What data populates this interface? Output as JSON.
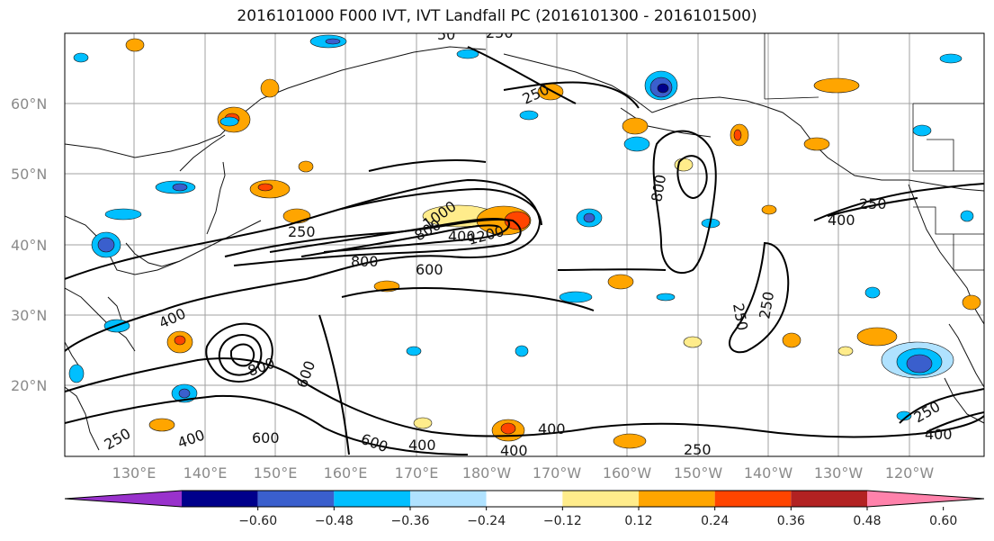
{
  "title": "2016101000 F000 IVT, IVT Landfall PC (2016101300 - 2016101500)",
  "lat_labels": [
    "60°N",
    "50°N",
    "40°N",
    "30°N",
    "20°N"
  ],
  "lon_labels": [
    "130°E",
    "140°E",
    "150°E",
    "160°E",
    "170°E",
    "180°W",
    "170°W",
    "160°W",
    "150°W",
    "140°W",
    "130°W",
    "120°W"
  ],
  "contour_labels": {
    "c250_a": "250",
    "c250_b": "250",
    "c250_c": "250",
    "c250_d": "250",
    "c250_e": "250",
    "c250_f": "250",
    "c250_g": "250",
    "c250_h": "250",
    "c250_i": "250",
    "c400_a": "400",
    "c400_b": "400",
    "c400_c": "400",
    "c400_d": "400",
    "c400_e": "400",
    "c400_f": "400",
    "c400_g": "400",
    "c400_h": "400",
    "c600_a": "600",
    "c600_b": "600",
    "c600_c": "600",
    "c600_d": "600",
    "c800_a": "800",
    "c800_b": "800",
    "c800_c": "800",
    "c800_d": "800",
    "c1200": "1200",
    "c1000": "1000",
    "c_b0": "50"
  },
  "colorbar": {
    "ticks": [
      "−0.60",
      "−0.48",
      "−0.36",
      "−0.24",
      "−0.12",
      "0.12",
      "0.24",
      "0.36",
      "0.48",
      "0.60"
    ],
    "colors": [
      "#9932CC",
      "#00008B",
      "#3A5FCD",
      "#00BFFF",
      "#B0E2FF",
      "#FFFFFF",
      "#FFEC8B",
      "#FFA500",
      "#FF4500",
      "#B22222",
      "#FF82AB"
    ]
  }
}
